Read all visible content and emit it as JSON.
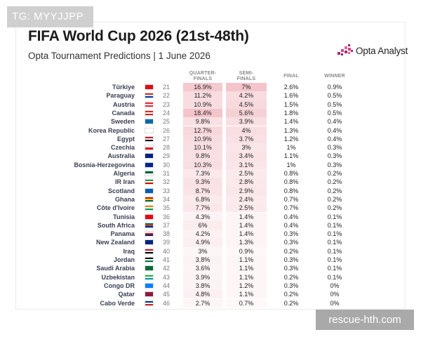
{
  "badge": "TG: MYYJJPP",
  "title": "FIFA World Cup 2026 (21st-48th)",
  "subtitle": "Opta Tournament Predictions | 1 June 2026",
  "logo_text": "Opta Analyst",
  "watermark": "rescue-hth.com",
  "columns": {
    "qf_line1": "QUARTER-",
    "qf_line2": "FINALS",
    "sf_line1": "SEMI-",
    "sf_line2": "FINALS",
    "final": "FINAL",
    "winner": "WINNER"
  },
  "chart_data": {
    "type": "table",
    "title": "FIFA World Cup 2026 (21st-48th)",
    "subtitle": "Opta Tournament Predictions | 1 June 2026",
    "columns": [
      "QUARTER-FINALS",
      "SEMI-FINALS",
      "FINAL",
      "WINNER"
    ],
    "rows": [
      {
        "team": "Türkiye",
        "rank": "21",
        "qf": "16.9%",
        "sf": "7%",
        "final": "2.6%",
        "winner": "0.9%",
        "flag": [
          "#e30a17"
        ]
      },
      {
        "team": "Paraguay",
        "rank": "22",
        "qf": "11.2%",
        "sf": "4.2%",
        "final": "1.6%",
        "winner": "0.5%",
        "flag": [
          "#d52b1e",
          "#ffffff",
          "#0038a8"
        ]
      },
      {
        "team": "Austria",
        "rank": "23",
        "qf": "10.9%",
        "sf": "4.5%",
        "final": "1.5%",
        "winner": "0.5%",
        "flag": [
          "#ed2939",
          "#ffffff",
          "#ed2939"
        ]
      },
      {
        "team": "Canada",
        "rank": "24",
        "qf": "18.4%",
        "sf": "5.6%",
        "final": "1.8%",
        "winner": "0.5%",
        "flag": [
          "#d52b1e",
          "#ffffff",
          "#d52b1e"
        ]
      },
      {
        "team": "Sweden",
        "rank": "25",
        "qf": "9.8%",
        "sf": "3.9%",
        "final": "1.4%",
        "winner": "0.4%",
        "flag": [
          "#006aa7"
        ]
      },
      {
        "team": "Korea Republic",
        "rank": "26",
        "qf": "12.7%",
        "sf": "4%",
        "final": "1.3%",
        "winner": "0.4%",
        "flag": [
          "#ffffff"
        ]
      },
      {
        "team": "Egypt",
        "rank": "27",
        "qf": "10.9%",
        "sf": "3.7%",
        "final": "1.2%",
        "winner": "0.4%",
        "flag": [
          "#ce1126",
          "#ffffff",
          "#000000"
        ]
      },
      {
        "team": "Czechia",
        "rank": "28",
        "qf": "10.1%",
        "sf": "3%",
        "final": "1%",
        "winner": "0.3%",
        "flag": [
          "#ffffff",
          "#d7141a"
        ]
      },
      {
        "team": "Australia",
        "rank": "29",
        "qf": "9.8%",
        "sf": "3.4%",
        "final": "1.1%",
        "winner": "0.3%",
        "flag": [
          "#00247d"
        ]
      },
      {
        "team": "Bosnia-Herzegovina",
        "rank": "30",
        "qf": "10.3%",
        "sf": "3.1%",
        "final": "1%",
        "winner": "0.3%",
        "flag": [
          "#002395"
        ]
      },
      {
        "team": "Algeria",
        "rank": "31",
        "qf": "7.3%",
        "sf": "2.5%",
        "final": "0.8%",
        "winner": "0.2%",
        "flag": [
          "#006233",
          "#ffffff"
        ]
      },
      {
        "team": "IR Iran",
        "rank": "32",
        "qf": "9.3%",
        "sf": "2.8%",
        "final": "0.8%",
        "winner": "0.2%",
        "flag": [
          "#239f40",
          "#ffffff",
          "#da0000"
        ]
      },
      {
        "team": "Scotland",
        "rank": "33",
        "qf": "8.7%",
        "sf": "2.9%",
        "final": "0.8%",
        "winner": "0.2%",
        "flag": [
          "#005eb8"
        ]
      },
      {
        "team": "Ghana",
        "rank": "34",
        "qf": "6.8%",
        "sf": "2.4%",
        "final": "0.7%",
        "winner": "0.2%",
        "flag": [
          "#ce1126",
          "#fcd116",
          "#006b3f"
        ]
      },
      {
        "team": "Côte d'Ivoire",
        "rank": "35",
        "qf": "7.7%",
        "sf": "2.5%",
        "final": "0.7%",
        "winner": "0.2%",
        "flag": [
          "#f77f00",
          "#ffffff",
          "#009e60"
        ]
      },
      {
        "team": "Tunisia",
        "rank": "36",
        "qf": "4.3%",
        "sf": "1.4%",
        "final": "0.4%",
        "winner": "0.1%",
        "flag": [
          "#e70013"
        ]
      },
      {
        "team": "South Africa",
        "rank": "37",
        "qf": "6%",
        "sf": "1.4%",
        "final": "0.4%",
        "winner": "0.1%",
        "flag": [
          "#007a4d",
          "#de3831",
          "#002395"
        ]
      },
      {
        "team": "Panama",
        "rank": "38",
        "qf": "4.2%",
        "sf": "1.4%",
        "final": "0.3%",
        "winner": "0.1%",
        "flag": [
          "#ffffff",
          "#da121a",
          "#072357"
        ]
      },
      {
        "team": "New Zealand",
        "rank": "39",
        "qf": "4.9%",
        "sf": "1.3%",
        "final": "0.3%",
        "winner": "0.1%",
        "flag": [
          "#00247d"
        ]
      },
      {
        "team": "Iraq",
        "rank": "40",
        "qf": "3%",
        "sf": "0.9%",
        "final": "0.2%",
        "winner": "0.1%",
        "flag": [
          "#ce1126",
          "#ffffff",
          "#000000"
        ]
      },
      {
        "team": "Jordan",
        "rank": "41",
        "qf": "3.8%",
        "sf": "1.1%",
        "final": "0.3%",
        "winner": "0.1%",
        "flag": [
          "#000000",
          "#ffffff",
          "#007a3d"
        ]
      },
      {
        "team": "Saudi Arabia",
        "rank": "42",
        "qf": "3.6%",
        "sf": "1.1%",
        "final": "0.3%",
        "winner": "0.1%",
        "flag": [
          "#006c35"
        ]
      },
      {
        "team": "Uzbekistan",
        "rank": "43",
        "qf": "3.9%",
        "sf": "1.1%",
        "final": "0.2%",
        "winner": "0.1%",
        "flag": [
          "#1eb53a",
          "#ffffff",
          "#0099b5"
        ]
      },
      {
        "team": "Congo DR",
        "rank": "44",
        "qf": "3.8%",
        "sf": "1.2%",
        "final": "0.3%",
        "winner": "0%",
        "flag": [
          "#007fff"
        ]
      },
      {
        "team": "Qatar",
        "rank": "45",
        "qf": "4.8%",
        "sf": "1.1%",
        "final": "0.2%",
        "winner": "0%",
        "flag": [
          "#8d1b3d"
        ]
      },
      {
        "team": "Cabo Verde",
        "rank": "46",
        "qf": "2.7%",
        "sf": "0.7%",
        "final": "0.2%",
        "winner": "0%",
        "flag": [
          "#003893",
          "#ffffff",
          "#cf2027"
        ]
      }
    ]
  },
  "colors": {
    "heat_qf": "#d94a5c",
    "heat_sf": "#d94a5c",
    "logo_accent": "#b8286a",
    "team_text": "#3a3f52"
  }
}
